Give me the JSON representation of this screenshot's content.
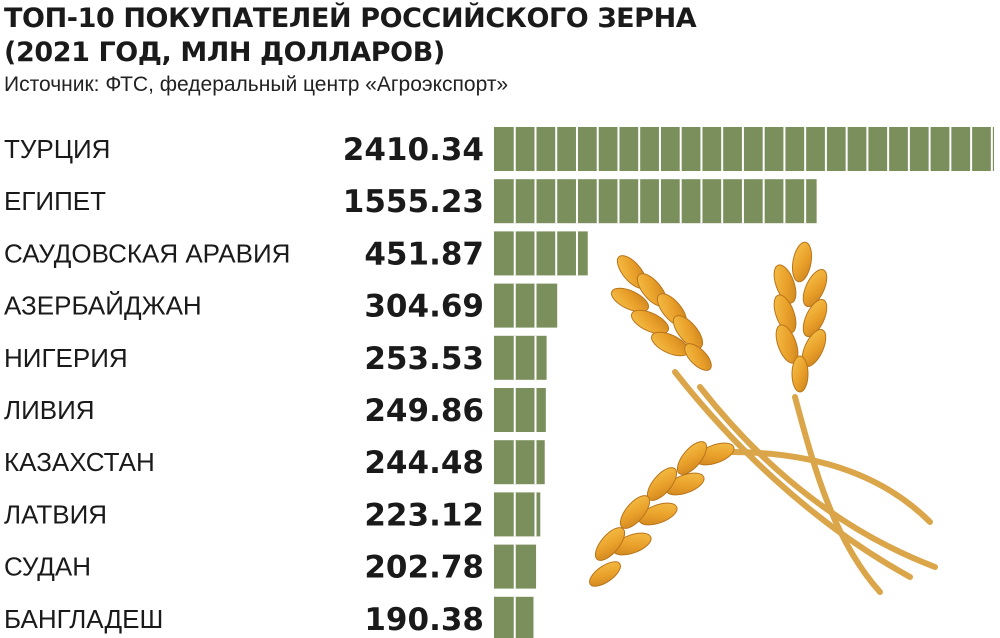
{
  "header": {
    "title": "ТОП-10 ПОКУПАТЕЛЕЙ РОССИЙСКОГО ЗЕРНА (2021 ГОД, МЛН ДОЛЛАРОВ)",
    "source": "Источник: ФТС, федеральный центр «Агроэкспорт»"
  },
  "colors": {
    "bar": "#7a8f5c",
    "segment_divider": "#ffffff",
    "text": "#1a1a1a",
    "wheat_grain": "#e8a22a",
    "wheat_stem": "#dba64a"
  },
  "decoration": {
    "icon": "wheat-ears-icon"
  },
  "chart_data": {
    "type": "bar",
    "orientation": "horizontal",
    "title": "ТОП-10 ПОКУПАТЕЛЕЙ РОССИЙСКОГО ЗЕРНА (2021 ГОД, МЛН ДОЛЛАРОВ)",
    "categories": [
      "ТУРЦИЯ",
      "ЕГИПЕТ",
      "САУДОВСКАЯ АРАВИЯ",
      "АЗЕРБАЙДЖАН",
      "НИГЕРИЯ",
      "ЛИВИЯ",
      "КАЗАХСТАН",
      "ЛАТВИЯ",
      "СУДАН",
      "БАНГЛАДЕШ"
    ],
    "values": [
      2410.34,
      1555.23,
      451.87,
      304.69,
      253.53,
      249.86,
      244.48,
      223.12,
      202.78,
      190.38
    ],
    "value_labels": [
      "2410.34",
      "1555.23",
      "451.87",
      "304.69",
      "253.53",
      "249.86",
      "244.48",
      "223.12",
      "202.78",
      "190.38"
    ],
    "segment_value": 100,
    "xlim": [
      0,
      2410.34
    ],
    "grid": false,
    "legend": "none"
  }
}
